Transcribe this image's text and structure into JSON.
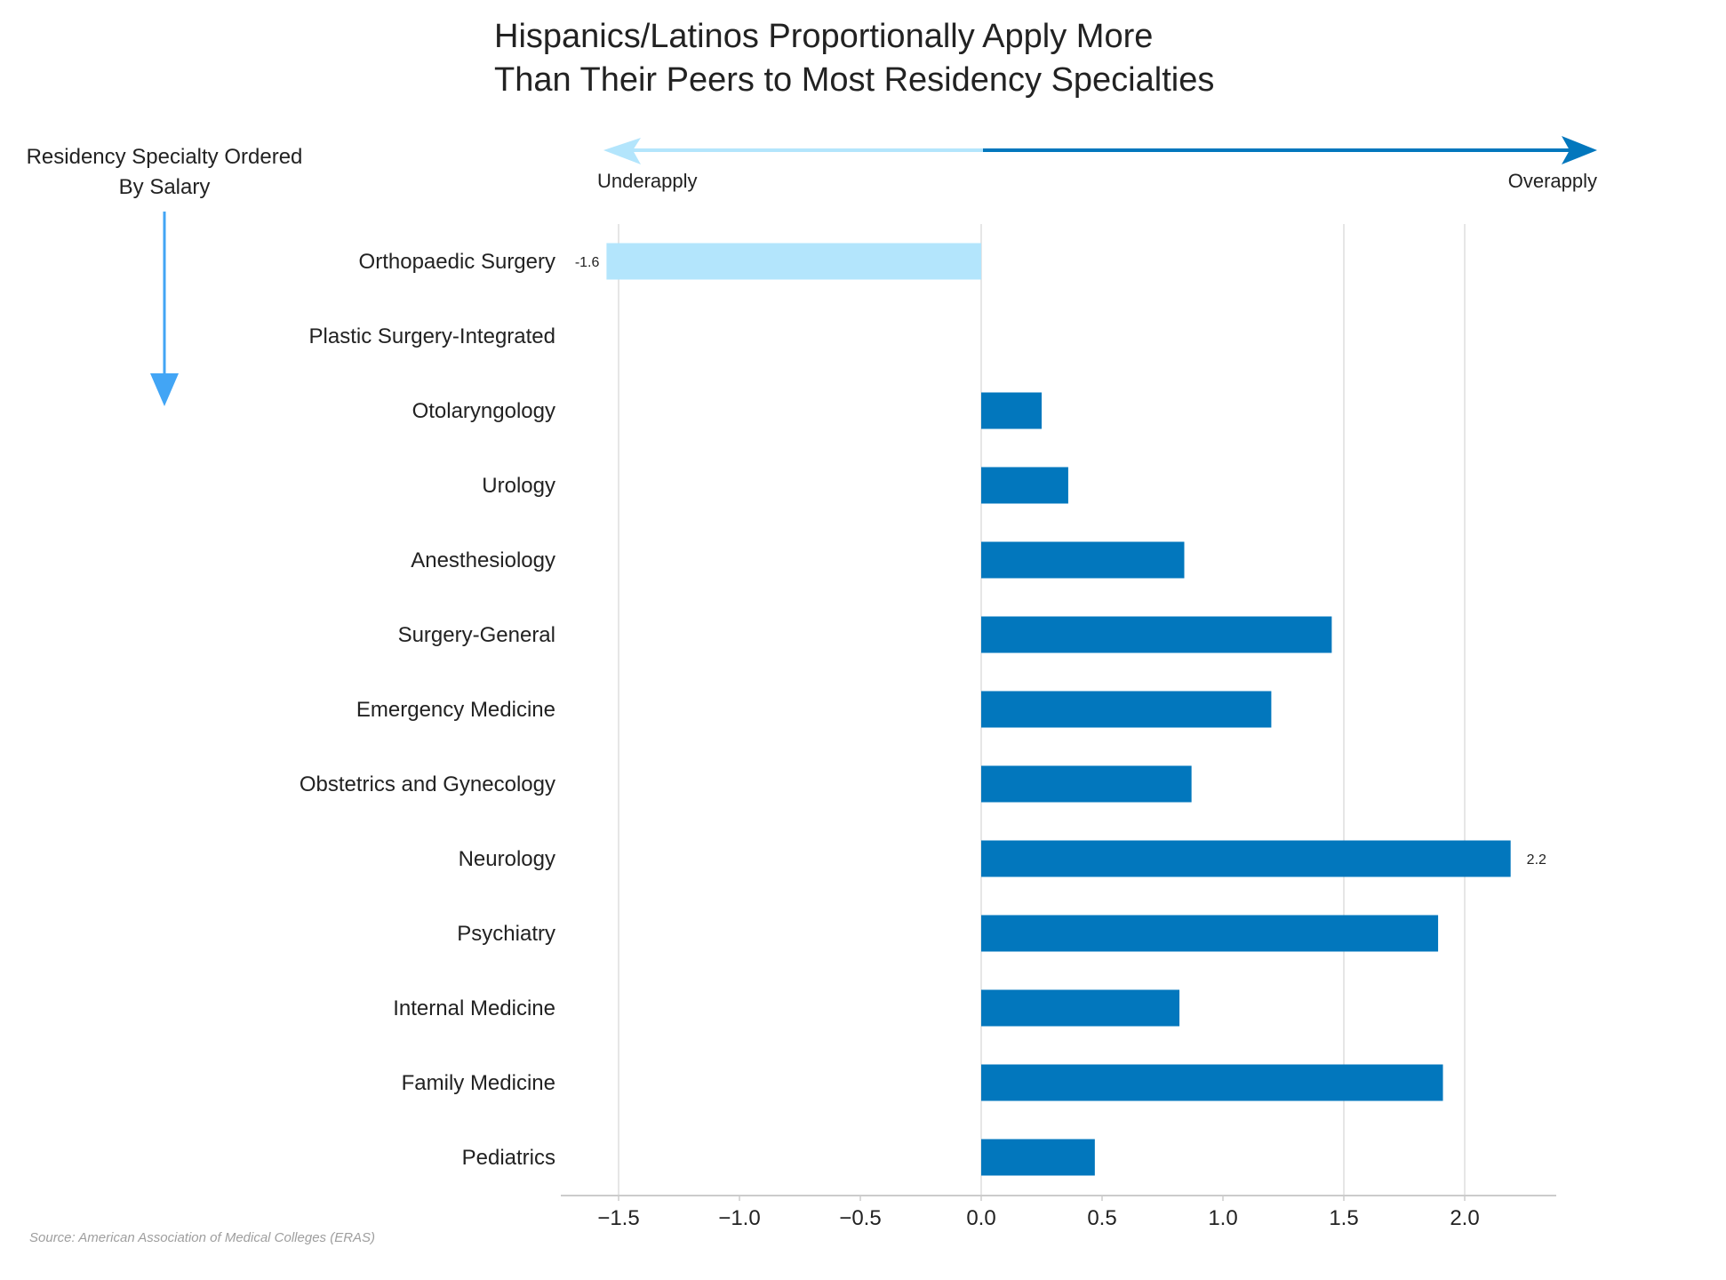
{
  "chart_data": {
    "type": "bar",
    "orientation": "horizontal",
    "title_lines": [
      "Hispanics/Latinos Proportionally Apply More",
      "Than Their Peers to Most Residency Specialties"
    ],
    "direction_labels": {
      "negative": "Underapply",
      "positive": "Overapply"
    },
    "order_note_lines": [
      "Residency Specialty Ordered",
      "By Salary"
    ],
    "categories": [
      "Orthopaedic Surgery",
      "Plastic Surgery-Integrated",
      "Otolaryngology",
      "Urology",
      "Anesthesiology",
      "Surgery-General",
      "Emergency Medicine",
      "Obstetrics and Gynecology",
      "Neurology",
      "Psychiatry",
      "Internal Medicine",
      "Family Medicine",
      "Pediatrics"
    ],
    "values": [
      -1.55,
      0.0,
      0.25,
      0.36,
      0.84,
      1.45,
      1.2,
      0.87,
      2.19,
      1.89,
      0.82,
      1.91,
      0.47
    ],
    "data_labels": [
      {
        "index": 0,
        "text": "-1.6"
      },
      {
        "index": 8,
        "text": "2.2"
      }
    ],
    "xlim": [
      -1.75,
      2.38
    ],
    "xticks": [
      -1.5,
      -1.0,
      -0.5,
      0.0,
      0.5,
      1.0,
      1.5,
      2.0
    ],
    "xtick_labels": [
      "−1.5",
      "−1.0",
      "−0.5",
      "0.0",
      "0.5",
      "1.0",
      "1.5",
      "2.0"
    ],
    "grid": "vertical at -1.5, 1.5 and 2.0",
    "colors": {
      "positive": "#0277bd",
      "negative": "#b3e5fc",
      "order_arrow": "#42a5f5",
      "grid": "#dddddd",
      "text": "#222222",
      "source": "#9e9e9e"
    },
    "source": "Source: American Association of Medical Colleges (ERAS)"
  }
}
